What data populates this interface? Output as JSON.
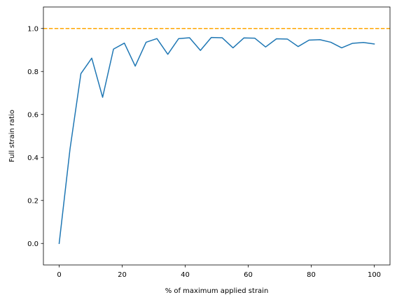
{
  "chart_data": {
    "type": "line",
    "title": "",
    "xlabel": "% of maximum applied strain",
    "ylabel": "Full strain ratio",
    "xlim": [
      -5,
      105
    ],
    "ylim": [
      -0.1,
      1.1
    ],
    "xticks": [
      0,
      20,
      40,
      60,
      80,
      100
    ],
    "yticks": [
      0.0,
      0.2,
      0.4,
      0.6,
      0.8,
      1.0
    ],
    "xtick_labels": [
      "0",
      "20",
      "40",
      "60",
      "80",
      "100"
    ],
    "ytick_labels": [
      "0.0",
      "0.2",
      "0.4",
      "0.6",
      "0.8",
      "1.0"
    ],
    "grid": false,
    "series": [
      {
        "color": "#1f77b4",
        "x": [
          0,
          3.45,
          6.9,
          10.34,
          13.79,
          17.24,
          20.69,
          24.14,
          27.59,
          31.03,
          34.48,
          37.93,
          41.38,
          44.83,
          48.28,
          51.72,
          55.17,
          58.62,
          62.07,
          65.52,
          68.97,
          72.41,
          75.86,
          79.31,
          82.76,
          86.21,
          89.66,
          93.1,
          96.55,
          100
        ],
        "y": [
          0.0,
          0.44,
          0.79,
          0.862,
          0.68,
          0.904,
          0.932,
          0.825,
          0.936,
          0.953,
          0.88,
          0.953,
          0.957,
          0.898,
          0.958,
          0.957,
          0.91,
          0.956,
          0.955,
          0.914,
          0.952,
          0.951,
          0.916,
          0.946,
          0.948,
          0.936,
          0.91,
          0.931,
          0.935,
          0.928
        ]
      }
    ],
    "reference_lines": [
      {
        "orientation": "horizontal",
        "y": 1.0,
        "color": "#ffa500",
        "style": "dashed"
      }
    ]
  }
}
